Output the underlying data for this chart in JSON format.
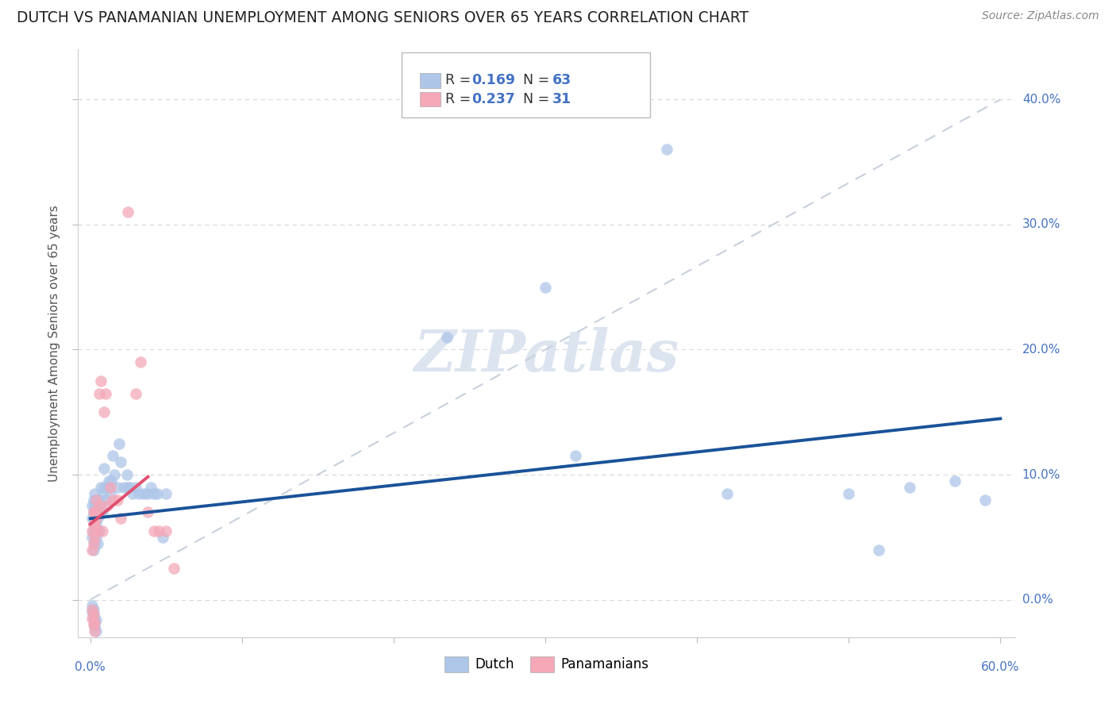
{
  "title": "DUTCH VS PANAMANIAN UNEMPLOYMENT AMONG SENIORS OVER 65 YEARS CORRELATION CHART",
  "source": "Source: ZipAtlas.com",
  "ylabel": "Unemployment Among Seniors over 65 years",
  "right_ytick_labels": [
    "0.0%",
    "10.0%",
    "20.0%",
    "30.0%",
    "40.0%"
  ],
  "right_ytick_vals": [
    0.0,
    0.1,
    0.2,
    0.3,
    0.4
  ],
  "xlim": [
    0.0,
    0.6
  ],
  "ylim": [
    -0.03,
    0.44
  ],
  "legend_r_blue": "0.169",
  "legend_n_blue": "63",
  "legend_r_pink": "0.237",
  "legend_n_pink": "31",
  "dutch_x": [
    0.001,
    0.001,
    0.001,
    0.002,
    0.002,
    0.002,
    0.002,
    0.003,
    0.003,
    0.003,
    0.003,
    0.003,
    0.004,
    0.004,
    0.004,
    0.004,
    0.005,
    0.005,
    0.005,
    0.005,
    0.006,
    0.006,
    0.006,
    0.007,
    0.007,
    0.008,
    0.008,
    0.009,
    0.009,
    0.01,
    0.011,
    0.012,
    0.013,
    0.014,
    0.015,
    0.016,
    0.018,
    0.019,
    0.02,
    0.022,
    0.024,
    0.025,
    0.026,
    0.028,
    0.03,
    0.032,
    0.035,
    0.038,
    0.04,
    0.042,
    0.044,
    0.048,
    0.05,
    0.235,
    0.3,
    0.32,
    0.38,
    0.42,
    0.5,
    0.52,
    0.54,
    0.57,
    0.59
  ],
  "dutch_y": [
    0.05,
    0.065,
    0.075,
    0.04,
    0.055,
    0.07,
    0.08,
    0.045,
    0.055,
    0.065,
    0.075,
    0.085,
    0.05,
    0.06,
    0.07,
    0.08,
    0.045,
    0.055,
    0.065,
    0.08,
    0.055,
    0.07,
    0.08,
    0.075,
    0.09,
    0.07,
    0.085,
    0.09,
    0.105,
    0.08,
    0.09,
    0.095,
    0.085,
    0.095,
    0.115,
    0.1,
    0.09,
    0.125,
    0.11,
    0.09,
    0.1,
    0.09,
    0.09,
    0.085,
    0.09,
    0.085,
    0.085,
    0.085,
    0.09,
    0.085,
    0.085,
    0.05,
    0.085,
    0.21,
    0.25,
    0.115,
    0.36,
    0.085,
    0.085,
    0.04,
    0.09,
    0.095,
    0.08
  ],
  "dutch_y_neg": [
    -0.005,
    -0.01,
    -0.008,
    -0.012,
    -0.015,
    -0.02,
    -0.018,
    -0.022,
    -0.016,
    -0.025
  ],
  "dutch_x_neg": [
    0.001,
    0.001,
    0.002,
    0.002,
    0.002,
    0.003,
    0.003,
    0.003,
    0.004,
    0.004
  ],
  "panamanian_x": [
    0.001,
    0.001,
    0.002,
    0.002,
    0.002,
    0.003,
    0.003,
    0.003,
    0.004,
    0.004,
    0.005,
    0.005,
    0.006,
    0.006,
    0.007,
    0.008,
    0.009,
    0.01,
    0.011,
    0.013,
    0.015,
    0.018,
    0.02,
    0.025,
    0.03,
    0.033,
    0.038,
    0.042,
    0.045,
    0.05,
    0.055
  ],
  "panamanian_y": [
    0.04,
    0.055,
    0.045,
    0.06,
    0.07,
    0.05,
    0.06,
    0.07,
    0.065,
    0.08,
    0.055,
    0.07,
    0.165,
    0.075,
    0.175,
    0.055,
    0.15,
    0.165,
    0.075,
    0.09,
    0.08,
    0.08,
    0.065,
    0.31,
    0.165,
    0.19,
    0.07,
    0.055,
    0.055,
    0.055,
    0.025
  ],
  "panamanian_y_neg": [
    -0.008,
    -0.015,
    -0.012,
    -0.02,
    -0.018,
    -0.025
  ],
  "panamanian_x_neg": [
    0.001,
    0.001,
    0.002,
    0.002,
    0.003,
    0.003
  ],
  "blue_color": "#aec6e8",
  "pink_color": "#f4a8b8",
  "blue_line_color": "#1a5299",
  "pink_line_color": "#e05070",
  "dashed_line_color": "#c8d0dc",
  "grid_color": "#d8d8d8",
  "watermark_text": "ZIPatlas",
  "watermark_color": "#dce4f0"
}
